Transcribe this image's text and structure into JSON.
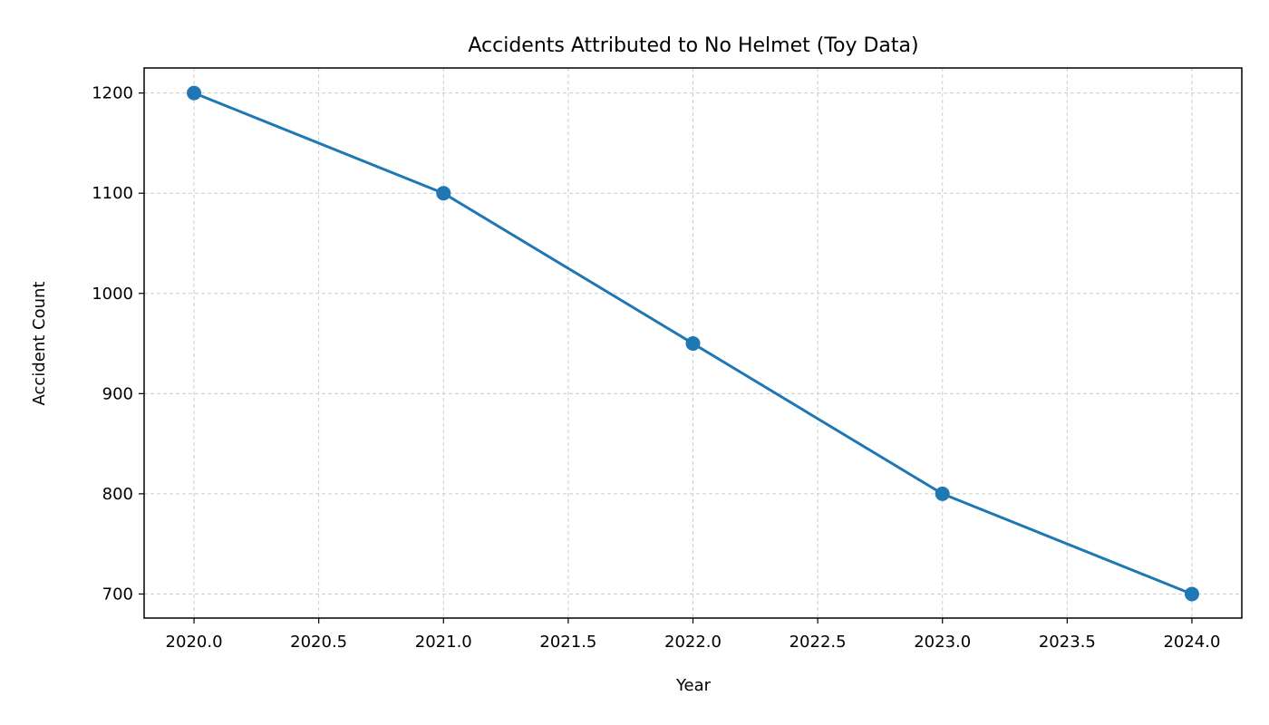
{
  "chart_data": {
    "type": "line",
    "title": "Accidents Attributed to No Helmet (Toy Data)",
    "xlabel": "Year",
    "ylabel": "Accident Count",
    "x": [
      2020,
      2021,
      2022,
      2023,
      2024
    ],
    "series": [
      {
        "values": [
          1200,
          1100,
          950,
          800,
          700
        ],
        "color": "#1f77b4"
      }
    ],
    "xlim": [
      2019.8,
      2024.2
    ],
    "ylim": [
      676,
      1225
    ],
    "xticks": [
      2020.0,
      2020.5,
      2021.0,
      2021.5,
      2022.0,
      2022.5,
      2023.0,
      2023.5,
      2024.0
    ],
    "xtick_labels": [
      "2020.0",
      "2020.5",
      "2021.0",
      "2021.5",
      "2022.0",
      "2022.5",
      "2023.0",
      "2023.5",
      "2024.0"
    ],
    "yticks": [
      700,
      800,
      900,
      1000,
      1100,
      1200
    ],
    "ytick_labels": [
      "700",
      "800",
      "900",
      "1000",
      "1100",
      "1200"
    ],
    "grid": true,
    "grid_style": "dashed",
    "grid_color": "#cccccc",
    "marker": "circle"
  }
}
